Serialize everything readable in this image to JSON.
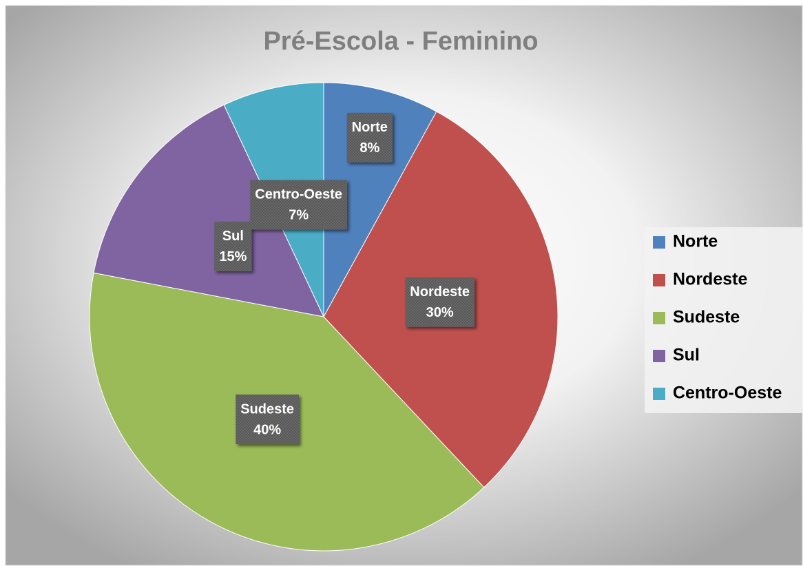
{
  "chart_data": {
    "type": "pie",
    "title": "Pré-Escola - Feminino",
    "categories": [
      "Norte",
      "Nordeste",
      "Sudeste",
      "Sul",
      "Centro-Oeste"
    ],
    "values": [
      8,
      30,
      40,
      15,
      7
    ],
    "value_labels": [
      "8%",
      "30%",
      "40%",
      "15%",
      "7%"
    ],
    "colors": [
      "#4f81bd",
      "#c0504d",
      "#9bbb59",
      "#8064a2",
      "#4bacc6"
    ],
    "legend": "right"
  }
}
